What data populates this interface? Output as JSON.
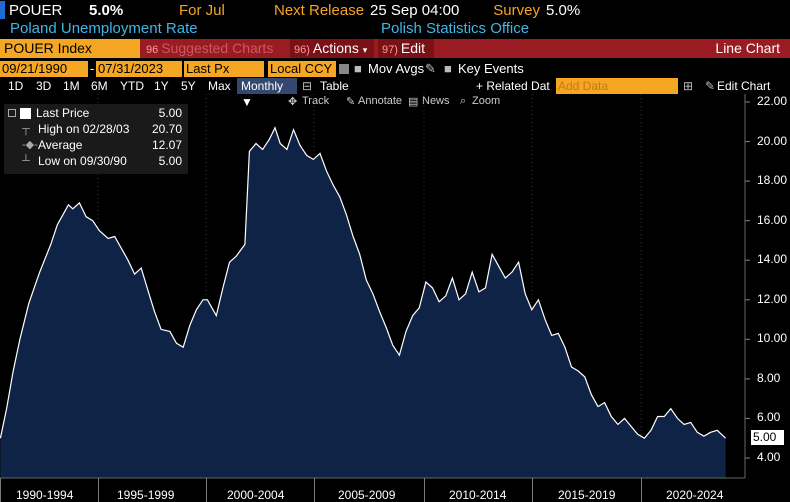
{
  "header": {
    "ticker": "POUER",
    "value": "5.0%",
    "for_label": "For Jul",
    "next_release_label": "Next Release",
    "next_release_value": "25 Sep 04:00",
    "survey_label": "Survey",
    "survey_value": "5.0%",
    "description": "Poland Unemployment Rate",
    "source": "Polish Statistics Office"
  },
  "toolbar": {
    "index": "POUER Index",
    "suggested_num": "96",
    "suggested": "Suggested Charts",
    "actions_num": "96)",
    "actions": "Actions",
    "edit_num": "97)",
    "edit": "Edit",
    "chart_type": "Line Chart"
  },
  "controls": {
    "start_date": "09/21/1990",
    "end_date": "07/31/2023",
    "field": "Last Px",
    "currency": "Local CCY",
    "mov_avgs": "Mov Avgs",
    "key_events": "Key Events"
  },
  "periods": [
    "1D",
    "3D",
    "1M",
    "6M",
    "YTD",
    "1Y",
    "5Y",
    "Max"
  ],
  "frequency": "Monthly ▼",
  "table": "Table",
  "related": "+ Related Dat",
  "add_data_placeholder": "Add Data",
  "edit_chart": "Edit Chart",
  "tools": [
    "Track",
    "Annotate",
    "News",
    "Zoom"
  ],
  "legend": {
    "last_price_label": "Last Price",
    "last_price": "5.00",
    "high_label": "High on 02/28/03",
    "high": "20.70",
    "average_label": "Average",
    "average": "12.07",
    "low_label": "Low on 09/30/90",
    "low": "5.00"
  },
  "last_value_tag": "5.00",
  "colors": {
    "area_fill": "#0f2347",
    "line": "#ffffff",
    "accent_orange": "#f5a623",
    "header_red": "#9b1b22",
    "title_blue": "#3fb6e8"
  },
  "chart_data": {
    "type": "area",
    "yticks": [
      "4.00",
      "6.00",
      "8.00",
      "10.00",
      "12.00",
      "14.00",
      "16.00",
      "18.00",
      "20.00",
      "22.00"
    ],
    "xlabels": [
      "1990-1994",
      "1995-1999",
      "2000-2004",
      "2005-2009",
      "2010-2014",
      "2015-2019",
      "2020-2024"
    ],
    "ylim": [
      4,
      22
    ],
    "xlim": [
      1990.7,
      2023.6
    ],
    "series": [
      {
        "points": [
          [
            1990.72,
            5.0
          ],
          [
            1991.0,
            6.5
          ],
          [
            1991.3,
            8.4
          ],
          [
            1991.6,
            10.0
          ],
          [
            1992.0,
            11.8
          ],
          [
            1992.5,
            13.4
          ],
          [
            1993.0,
            14.8
          ],
          [
            1993.3,
            15.8
          ],
          [
            1993.6,
            16.4
          ],
          [
            1993.8,
            16.8
          ],
          [
            1994.0,
            16.6
          ],
          [
            1994.3,
            16.9
          ],
          [
            1994.6,
            16.2
          ],
          [
            1994.9,
            16.0
          ],
          [
            1995.2,
            15.5
          ],
          [
            1995.6,
            15.1
          ],
          [
            1995.9,
            15.2
          ],
          [
            1996.2,
            14.6
          ],
          [
            1996.5,
            14.0
          ],
          [
            1996.8,
            13.3
          ],
          [
            1997.1,
            13.6
          ],
          [
            1997.4,
            12.5
          ],
          [
            1997.7,
            11.4
          ],
          [
            1998.0,
            10.5
          ],
          [
            1998.4,
            10.4
          ],
          [
            1998.7,
            9.8
          ],
          [
            1999.0,
            9.6
          ],
          [
            1999.3,
            10.7
          ],
          [
            1999.6,
            11.5
          ],
          [
            1999.9,
            12.0
          ],
          [
            2000.1,
            12.0
          ],
          [
            2000.5,
            11.2
          ],
          [
            2000.8,
            12.6
          ],
          [
            2001.1,
            13.9
          ],
          [
            2001.4,
            14.2
          ],
          [
            2001.8,
            14.8
          ],
          [
            2002.0,
            19.5
          ],
          [
            2002.3,
            19.9
          ],
          [
            2002.6,
            19.6
          ],
          [
            2002.9,
            20.1
          ],
          [
            2003.16,
            20.7
          ],
          [
            2003.4,
            19.9
          ],
          [
            2003.7,
            19.6
          ],
          [
            2004.0,
            20.6
          ],
          [
            2004.3,
            19.8
          ],
          [
            2004.6,
            19.3
          ],
          [
            2004.9,
            19.1
          ],
          [
            2005.2,
            19.4
          ],
          [
            2005.5,
            18.5
          ],
          [
            2005.8,
            17.8
          ],
          [
            2006.1,
            17.2
          ],
          [
            2006.4,
            16.3
          ],
          [
            2006.7,
            15.2
          ],
          [
            2007.0,
            14.3
          ],
          [
            2007.3,
            13.0
          ],
          [
            2007.6,
            12.3
          ],
          [
            2007.9,
            11.4
          ],
          [
            2008.2,
            10.6
          ],
          [
            2008.5,
            9.7
          ],
          [
            2008.8,
            9.2
          ],
          [
            2009.1,
            10.4
          ],
          [
            2009.4,
            11.2
          ],
          [
            2009.7,
            11.6
          ],
          [
            2010.0,
            12.9
          ],
          [
            2010.3,
            12.6
          ],
          [
            2010.6,
            11.9
          ],
          [
            2010.9,
            12.2
          ],
          [
            2011.2,
            13.1
          ],
          [
            2011.5,
            12.0
          ],
          [
            2011.8,
            12.3
          ],
          [
            2012.1,
            13.4
          ],
          [
            2012.4,
            12.4
          ],
          [
            2012.7,
            12.6
          ],
          [
            2013.0,
            14.3
          ],
          [
            2013.3,
            13.7
          ],
          [
            2013.6,
            13.1
          ],
          [
            2013.9,
            13.4
          ],
          [
            2014.2,
            13.9
          ],
          [
            2014.5,
            12.3
          ],
          [
            2014.8,
            11.5
          ],
          [
            2015.1,
            12.0
          ],
          [
            2015.4,
            11.0
          ],
          [
            2015.7,
            10.2
          ],
          [
            2016.0,
            10.3
          ],
          [
            2016.3,
            9.6
          ],
          [
            2016.6,
            8.6
          ],
          [
            2016.9,
            8.4
          ],
          [
            2017.2,
            8.1
          ],
          [
            2017.5,
            7.2
          ],
          [
            2017.8,
            6.6
          ],
          [
            2018.1,
            6.8
          ],
          [
            2018.4,
            6.1
          ],
          [
            2018.7,
            5.7
          ],
          [
            2019.0,
            6.0
          ],
          [
            2019.3,
            5.6
          ],
          [
            2019.6,
            5.2
          ],
          [
            2019.9,
            5.0
          ],
          [
            2020.2,
            5.4
          ],
          [
            2020.5,
            6.1
          ],
          [
            2020.8,
            6.1
          ],
          [
            2021.1,
            6.5
          ],
          [
            2021.4,
            6.0
          ],
          [
            2021.7,
            5.7
          ],
          [
            2022.0,
            5.8
          ],
          [
            2022.3,
            5.3
          ],
          [
            2022.6,
            5.1
          ],
          [
            2022.9,
            5.3
          ],
          [
            2023.2,
            5.4
          ],
          [
            2023.58,
            5.0
          ]
        ]
      }
    ]
  }
}
